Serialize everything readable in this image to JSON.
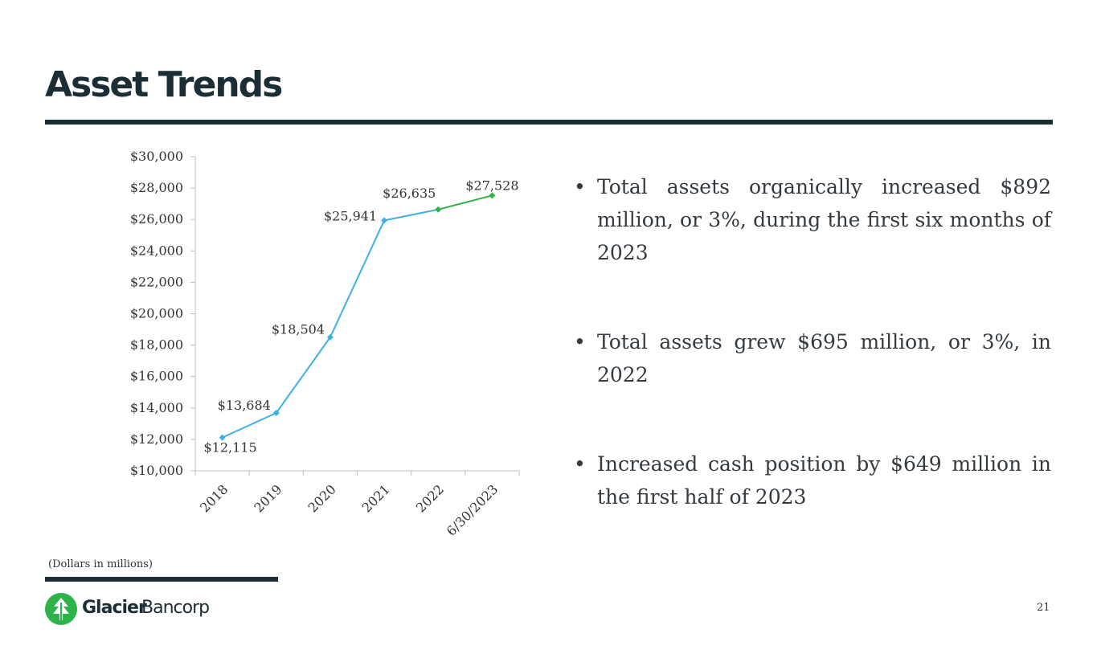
{
  "slide": {
    "title": "Asset Trends",
    "footnote": "(Dollars in millions)",
    "page_number": "21"
  },
  "bullets": [
    "Total assets organically increased $892 million, or 3%, during the first six months of 2023",
    "Total assets grew $695 million, or 3%, in 2022",
    "Increased cash position by $649 million in the first half of 2023"
  ],
  "bullet_symbol": "•",
  "logo": {
    "name_part1": "Glacier",
    "name_part2": "Bancorp",
    "icon": "glacier-leaf-icon"
  },
  "colors": {
    "dark_navy": "#1b2e36",
    "line_blue": "#3eb1e2",
    "line_green": "#2db34a",
    "logo_green": "#2db34a"
  },
  "chart_data": {
    "type": "line",
    "title": "",
    "xlabel": "",
    "ylabel": "",
    "categories": [
      "2018",
      "2019",
      "2020",
      "2021",
      "2022",
      "6/30/2023"
    ],
    "values": [
      12115,
      13684,
      18504,
      25941,
      26635,
      27528
    ],
    "data_labels": [
      "$12,115",
      "$13,684",
      "$18,504",
      "$25,941",
      "$26,635",
      "$27,528"
    ],
    "ylim": [
      10000,
      30000
    ],
    "y_step": 2000,
    "y_tick_labels": [
      "$10,000",
      "$12,000",
      "$14,000",
      "$16,000",
      "$18,000",
      "$20,000",
      "$22,000",
      "$24,000",
      "$26,000",
      "$28,000",
      "$30,000"
    ],
    "grid": false,
    "legend": "none",
    "series_colors": [
      "#3eb1e2",
      "#3eb1e2",
      "#3eb1e2",
      "#3eb1e2",
      "#2db34a"
    ],
    "units": "Dollars in millions"
  }
}
